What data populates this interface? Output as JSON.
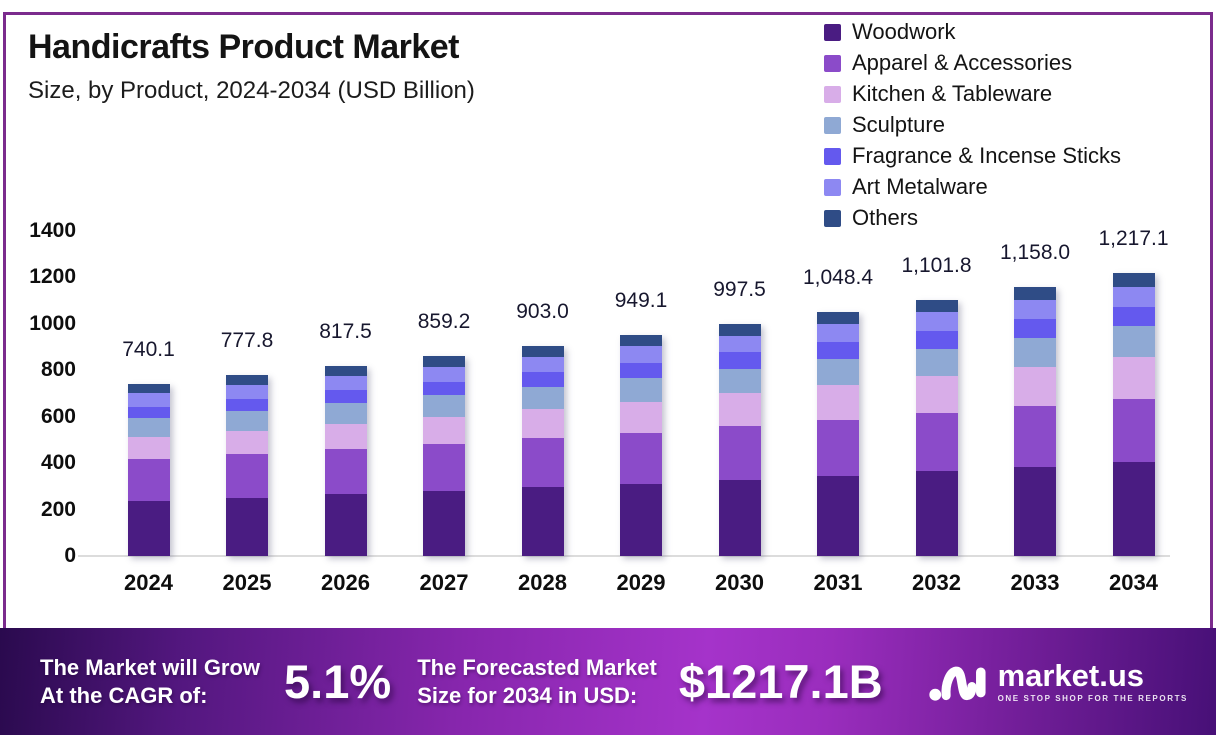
{
  "chart_data": {
    "type": "bar",
    "stacked": true,
    "title": "Handicrafts Product Market",
    "subtitle": "Size, by Product, 2024-2034 (USD Billion)",
    "categories": [
      "2024",
      "2025",
      "2026",
      "2027",
      "2028",
      "2029",
      "2030",
      "2031",
      "2032",
      "2033",
      "2034"
    ],
    "series": [
      {
        "name": "Woodwork",
        "color": "#4a1c82",
        "values": [
          238.0,
          251.3,
          265.1,
          279.8,
          294.8,
          310.8,
          327.5,
          345.1,
          363.4,
          382.7,
          403.0
        ]
      },
      {
        "name": "Apparel & Accessories",
        "color": "#8b4bc9",
        "values": [
          180.0,
          187.0,
          194.5,
          202.5,
          211.1,
          220.2,
          229.8,
          239.9,
          250.7,
          262.0,
          274.0
        ]
      },
      {
        "name": "Kitchen & Tableware",
        "color": "#d8ade8",
        "values": [
          94.0,
          101.3,
          108.8,
          116.5,
          124.6,
          132.9,
          141.5,
          150.5,
          159.9,
          169.7,
          180.0
        ]
      },
      {
        "name": "Sculpture",
        "color": "#8fa9d4",
        "values": [
          80.0,
          83.9,
          88.1,
          92.4,
          97.0,
          101.8,
          106.9,
          112.3,
          117.9,
          123.8,
          130.0
        ]
      },
      {
        "name": "Fragrance & Incense Sticks",
        "color": "#6459ee",
        "values": [
          50.0,
          52.9,
          56.0,
          59.1,
          62.5,
          66.0,
          69.6,
          73.4,
          77.4,
          81.6,
          86.0
        ]
      },
      {
        "name": "Art Metalware",
        "color": "#8d88f2",
        "values": [
          58.0,
          60.0,
          62.2,
          64.6,
          67.1,
          69.8,
          72.7,
          75.8,
          79.0,
          82.4,
          86.0
        ]
      },
      {
        "name": "Others",
        "color": "#2f4c86",
        "values": [
          40.1,
          41.4,
          42.8,
          44.3,
          45.9,
          47.6,
          49.5,
          51.4,
          53.5,
          55.8,
          58.1
        ]
      }
    ],
    "totals": [
      740.1,
      777.8,
      817.5,
      859.2,
      903.0,
      949.1,
      997.5,
      1048.4,
      1101.8,
      1158.0,
      1217.1
    ],
    "total_labels": [
      "740.1",
      "777.8",
      "817.5",
      "859.2",
      "903.0",
      "949.1",
      "997.5",
      "1,048.4",
      "1,101.8",
      "1,158.0",
      "1,217.1"
    ],
    "ylim": [
      0,
      1400
    ],
    "ytick_step": 200,
    "ytick_values": [
      0,
      200,
      400,
      600,
      800,
      1000,
      1200,
      1400
    ],
    "ytick_labels": [
      "0",
      "200",
      "400",
      "600",
      "800",
      "1000",
      "1200",
      "1400"
    ],
    "legend_position": "top-right",
    "grid": false
  },
  "banner": {
    "cagr_label_line1": "The Market will Grow",
    "cagr_label_line2": "At the CAGR of:",
    "cagr_value": "5.1%",
    "forecast_label_line1": "The Forecasted Market",
    "forecast_label_line2": "Size for 2034 in USD:",
    "forecast_value": "$1217.1B",
    "logo_name": "market.us",
    "logo_tagline": "ONE STOP SHOP FOR THE REPORTS"
  },
  "colors": {
    "frame_border": "#7b2b8d",
    "axis_line": "#dcdcdc",
    "value_label": "#17172e",
    "banner_gradient_start": "#2a0a4e",
    "banner_gradient_mid": "#a533ca",
    "banner_gradient_end": "#471077"
  }
}
